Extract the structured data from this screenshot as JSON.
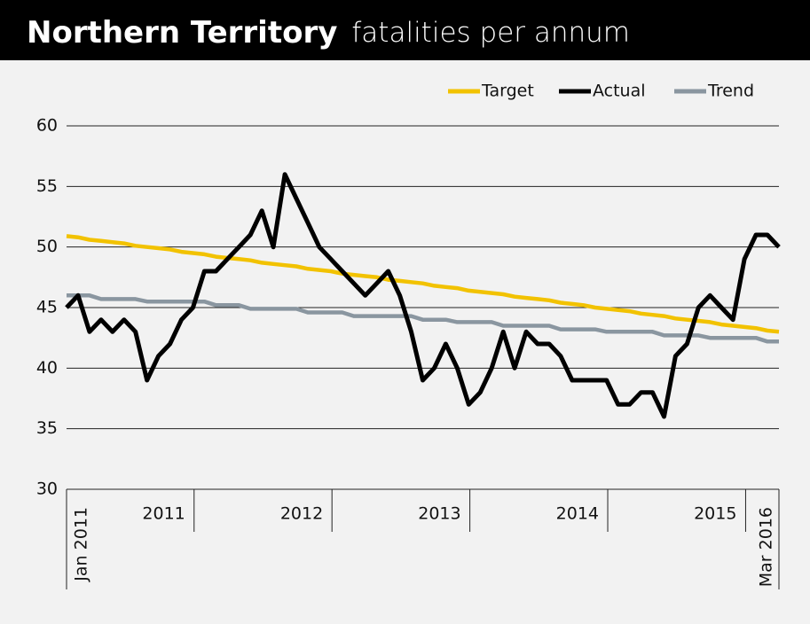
{
  "chart_data": {
    "type": "line",
    "title": "Northern Territory",
    "subtitle": "fatalities per annum",
    "categories": [
      "Jan 2011",
      null,
      null,
      null,
      null,
      null,
      null,
      null,
      null,
      null,
      null,
      null,
      null,
      null,
      null,
      null,
      null,
      null,
      null,
      null,
      null,
      null,
      null,
      null,
      null,
      null,
      null,
      null,
      null,
      null,
      null,
      null,
      null,
      null,
      null,
      null,
      null,
      null,
      null,
      null,
      null,
      null,
      null,
      null,
      null,
      null,
      null,
      null,
      null,
      null,
      null,
      null,
      null,
      null,
      null,
      null,
      null,
      null,
      null,
      null,
      null,
      null,
      "Mar 2016"
    ],
    "group_labels": [
      "2011",
      "2012",
      "2013",
      "2014",
      "2015"
    ],
    "group_ends": [
      11,
      23,
      35,
      47,
      59
    ],
    "series": [
      {
        "name": "Target",
        "color": "#f2c200",
        "values": [
          50.9,
          50.8,
          50.6,
          50.5,
          50.4,
          50.3,
          50.1,
          50.0,
          49.9,
          49.8,
          49.6,
          49.5,
          49.4,
          49.2,
          49.1,
          49.0,
          48.9,
          48.7,
          48.6,
          48.5,
          48.4,
          48.2,
          48.1,
          48.0,
          47.8,
          47.7,
          47.6,
          47.5,
          47.3,
          47.2,
          47.1,
          47.0,
          46.8,
          46.7,
          46.6,
          46.4,
          46.3,
          46.2,
          46.1,
          45.9,
          45.8,
          45.7,
          45.6,
          45.4,
          45.3,
          45.2,
          45.0,
          44.9,
          44.8,
          44.7,
          44.5,
          44.4,
          44.3,
          44.1,
          44.0,
          43.9,
          43.8,
          43.6,
          43.5,
          43.4,
          43.3,
          43.1,
          43.0
        ]
      },
      {
        "name": "Actual",
        "color": "#000000",
        "values": [
          45,
          46,
          43,
          44,
          43,
          44,
          43,
          39,
          41,
          42,
          44,
          45,
          48,
          48,
          49,
          50,
          51,
          53,
          50,
          56,
          54,
          52,
          50,
          49,
          48,
          47,
          46,
          47,
          48,
          46,
          43,
          39,
          40,
          42,
          40,
          37,
          38,
          40,
          43,
          40,
          43,
          42,
          42,
          41,
          39,
          39,
          39,
          39,
          37,
          37,
          38,
          38,
          36,
          41,
          42,
          45,
          46,
          45,
          44,
          49,
          51,
          51,
          50
        ]
      },
      {
        "name": "Trend",
        "color": "#8a96a0",
        "values": [
          46,
          46,
          46,
          45.7,
          45.7,
          45.7,
          45.7,
          45.5,
          45.5,
          45.5,
          45.5,
          45.5,
          45.5,
          45.2,
          45.2,
          45.2,
          44.9,
          44.9,
          44.9,
          44.9,
          44.9,
          44.6,
          44.6,
          44.6,
          44.6,
          44.3,
          44.3,
          44.3,
          44.3,
          44.3,
          44.3,
          44.0,
          44.0,
          44.0,
          43.8,
          43.8,
          43.8,
          43.8,
          43.5,
          43.5,
          43.5,
          43.5,
          43.5,
          43.2,
          43.2,
          43.2,
          43.2,
          43.0,
          43.0,
          43.0,
          43.0,
          43.0,
          42.7,
          42.7,
          42.7,
          42.7,
          42.5,
          42.5,
          42.5,
          42.5,
          42.5,
          42.2,
          42.2
        ]
      }
    ],
    "ylim": [
      30,
      60
    ],
    "yticks": [
      30,
      35,
      40,
      45,
      50,
      55,
      60
    ],
    "grid": true,
    "legend": "top-right"
  }
}
